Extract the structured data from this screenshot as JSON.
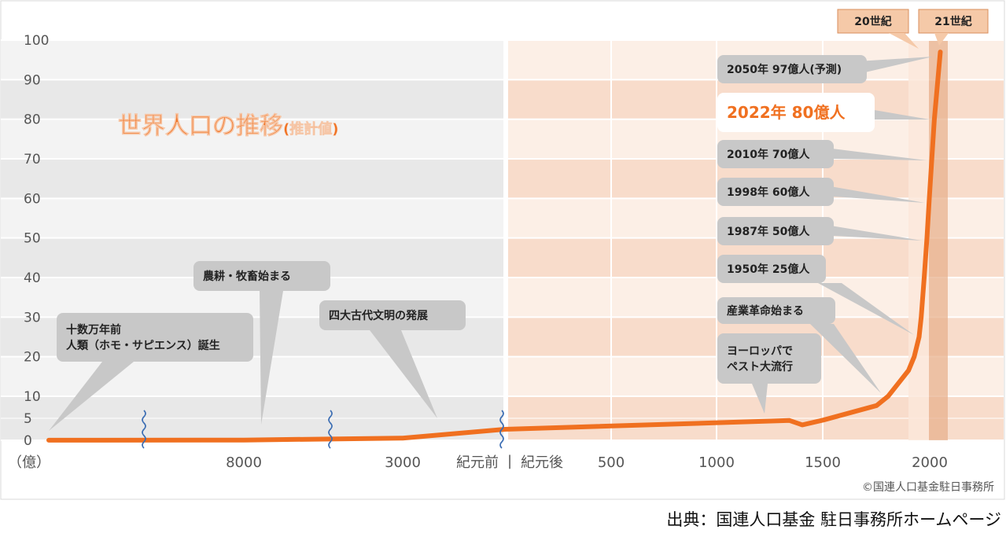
{
  "chart_data": {
    "type": "line",
    "title": "世界人口の推移",
    "title_suffix": "(推計値)",
    "y_unit_label": "（億）",
    "y_ticks": [
      "0",
      "5",
      "10",
      "20",
      "30",
      "40",
      "50",
      "60",
      "70",
      "80",
      "90",
      "100"
    ],
    "x_ticks": [
      "8000",
      "3000",
      "紀元前",
      "紀元後",
      "500",
      "1000",
      "1500",
      "2000"
    ],
    "x_divider": "|",
    "eras": [
      "20世紀",
      "21世紀"
    ],
    "annotations": [
      {
        "text": "十数万年前\n人類（ホモ・サピエンス）誕生"
      },
      {
        "text": "農耕・牧畜始まる"
      },
      {
        "text": "四大古代文明の発展"
      },
      {
        "text": "ヨーロッパで\nペスト大流行"
      },
      {
        "text": "産業革命始まる"
      },
      {
        "text": "1950年 25億人"
      },
      {
        "text": "1987年 50億人"
      },
      {
        "text": "1998年 60億人"
      },
      {
        "text": "2010年 70億人"
      },
      {
        "text": "2022年 80億人",
        "highlight": true
      },
      {
        "text": "2050年 97億人(予測)"
      }
    ],
    "series": [
      {
        "color": "#f07020",
        "points": [
          {
            "x": -150000,
            "y": 0.01
          },
          {
            "x": -8000,
            "y": 0.05
          },
          {
            "x": -3000,
            "y": 0.5
          },
          {
            "x": 1,
            "y": 2.5
          },
          {
            "x": 1340,
            "y": 4.5
          },
          {
            "x": 1400,
            "y": 3.5
          },
          {
            "x": 1500,
            "y": 4.6
          },
          {
            "x": 1750,
            "y": 7.9
          },
          {
            "x": 1804,
            "y": 10
          },
          {
            "x": 1900,
            "y": 16.5
          },
          {
            "x": 1927,
            "y": 20
          },
          {
            "x": 1950,
            "y": 25
          },
          {
            "x": 1960,
            "y": 30
          },
          {
            "x": 1974,
            "y": 40
          },
          {
            "x": 1987,
            "y": 50
          },
          {
            "x": 1998,
            "y": 60
          },
          {
            "x": 2010,
            "y": 70
          },
          {
            "x": 2022,
            "y": 80
          },
          {
            "x": 2050,
            "y": 97
          }
        ]
      }
    ],
    "ylim": [
      0,
      100
    ],
    "grid": true,
    "colors": {
      "line": "#f07020",
      "after_band": "#f8dccb",
      "before_band": "#e6e6e6",
      "era_box": "#f5c9a8",
      "callout": "#c8c8c8",
      "title": "#f07020"
    }
  },
  "copyright": "©国連人口基金駐日事務所",
  "source": "出典：国連人口基金 駐日事務所ホームページ"
}
